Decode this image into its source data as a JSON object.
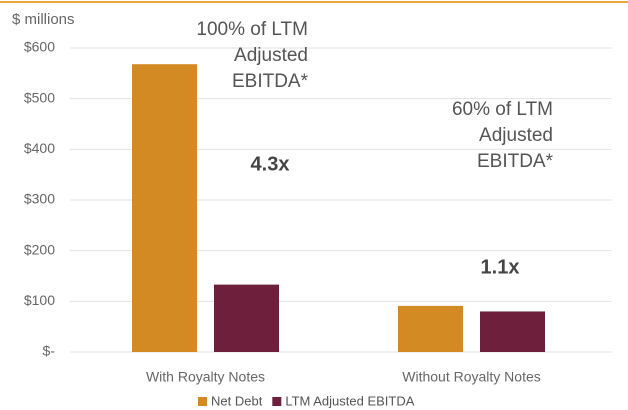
{
  "chart_data": {
    "type": "bar",
    "y_axis_label": "$ millions",
    "categories": [
      "With Royalty Notes",
      "Without Royalty Notes"
    ],
    "series": [
      {
        "name": "Net Debt",
        "color": "#d48a22",
        "values": [
          568,
          91
        ]
      },
      {
        "name": "LTM Adjusted EBITDA",
        "color": "#6d1f3b",
        "values": [
          133,
          80
        ]
      }
    ],
    "ylim": [
      0,
      600
    ],
    "yticks": [
      {
        "value": 0,
        "label": "$-"
      },
      {
        "value": 100,
        "label": "$100"
      },
      {
        "value": 200,
        "label": "$200"
      },
      {
        "value": 300,
        "label": "$300"
      },
      {
        "value": 400,
        "label": "$400"
      },
      {
        "value": 500,
        "label": "$500"
      },
      {
        "value": 600,
        "label": "$600"
      }
    ],
    "grid": true,
    "annotations": [
      {
        "lines": [
          "100% of LTM",
          "Adjusted",
          "EBITDA*"
        ]
      },
      {
        "lines": [
          "4.3x"
        ]
      },
      {
        "lines": [
          "60% of LTM",
          "Adjusted",
          "EBITDA*"
        ]
      },
      {
        "lines": [
          "1.1x"
        ]
      }
    ]
  }
}
